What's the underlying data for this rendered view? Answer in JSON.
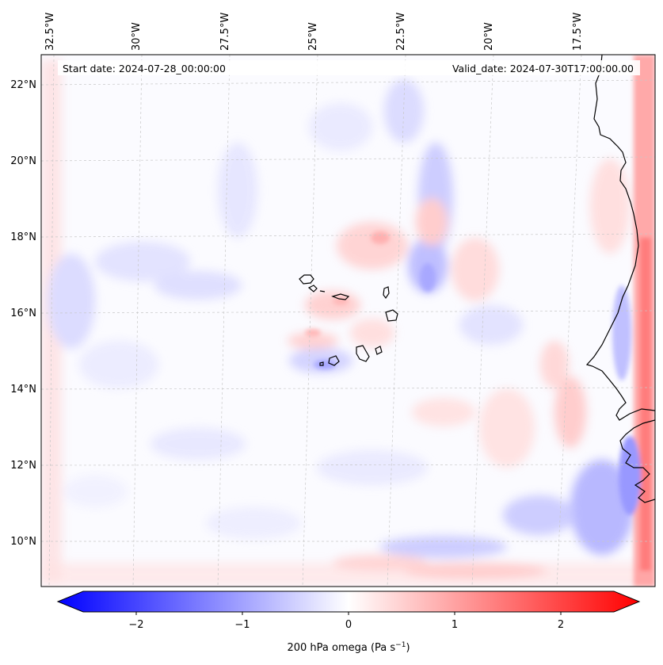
{
  "map": {
    "start_date_label": "Start date: 2024-07-28_00:00:00",
    "valid_date_label": "Valid_date: 2024-07-30T17:00:00.00",
    "longitude_labels": [
      "32.5°W",
      "30°W",
      "27.5°W",
      "25°W",
      "22.5°W",
      "20°W",
      "17.5°W"
    ],
    "latitude_labels": [
      "22°N",
      "20°N",
      "18°N",
      "16°N",
      "14°N",
      "12°N",
      "10°N"
    ],
    "projection_note": "",
    "coastline_color": "#000000",
    "gridline_color": "#c8c8c8"
  },
  "colorbar": {
    "label_prefix": "200 hPa omega (Pa s",
    "label_exponent": "−1",
    "label_suffix": ")",
    "tick_labels": [
      "−2",
      "−1",
      "0",
      "1",
      "2"
    ],
    "tick_values": [
      -2,
      -1,
      0,
      1,
      2
    ],
    "range": [
      -2.5,
      2.5
    ],
    "colormap": "bwr",
    "color_min": "#0000ff",
    "color_mid": "#ffffff",
    "color_max": "#ff0000",
    "extend": "both"
  },
  "chart_data": {
    "type": "heatmap",
    "title": "",
    "variable": "200 hPa omega",
    "units": "Pa s−1",
    "lon_range": [
      -33.0,
      -15.0
    ],
    "lat_range": [
      9.0,
      22.8
    ],
    "value_range": [
      -2.5,
      2.5
    ],
    "features": [
      {
        "name": "Cabo Verde islands",
        "lon": -24.0,
        "lat": 15.8
      },
      {
        "name": "West African coast",
        "lon": -16.5,
        "lat": 14.5
      }
    ]
  }
}
